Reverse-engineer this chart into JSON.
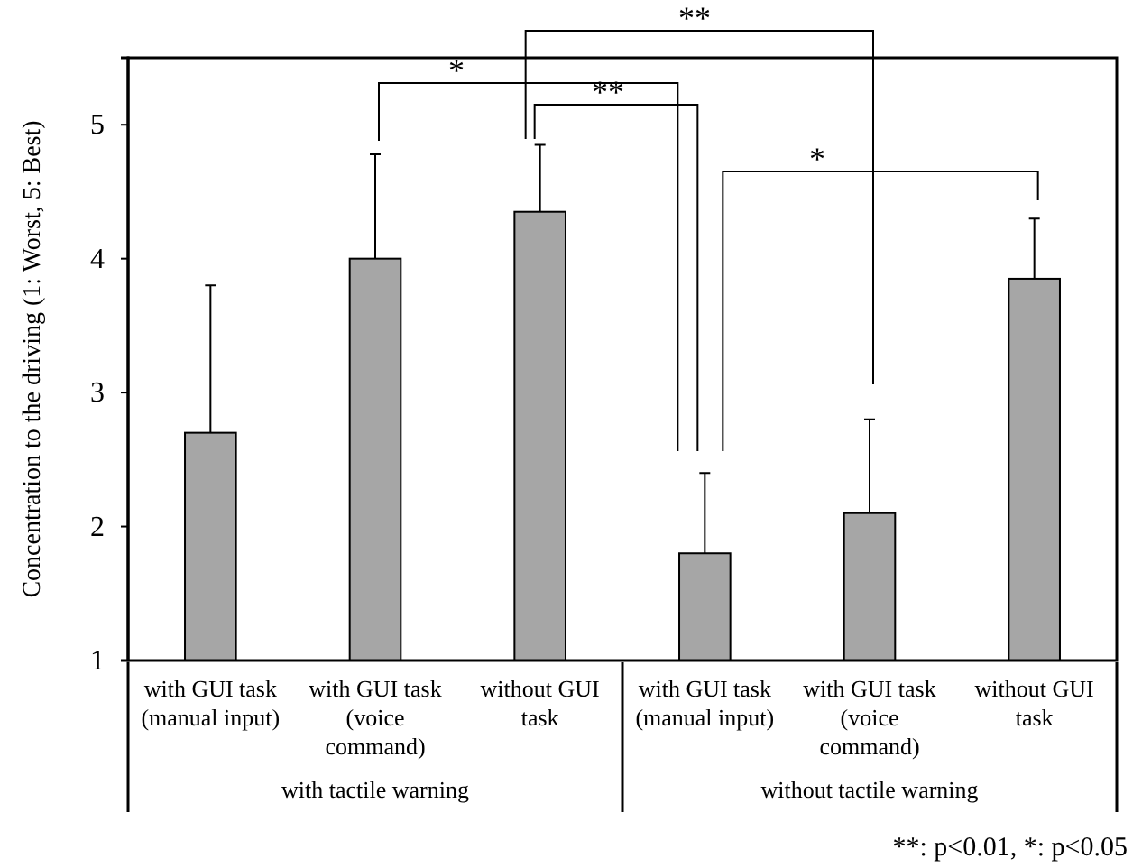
{
  "chart_data": {
    "type": "bar",
    "ylabel": "Concentration to the driving (1: Worst, 5: Best)",
    "categories": [
      "with GUI task (manual input)",
      "with GUI task (voice command)",
      "without GUI task",
      "with GUI task (manual input)",
      "with GUI task (voice command)",
      "without GUI task"
    ],
    "values": [
      2.7,
      4.0,
      4.35,
      1.8,
      2.1,
      3.85
    ],
    "errors": [
      [
        2.7,
        3.8
      ],
      [
        4.0,
        4.78
      ],
      [
        4.35,
        4.85
      ],
      [
        1.8,
        2.4
      ],
      [
        2.1,
        2.8
      ],
      [
        3.85,
        4.3
      ]
    ],
    "color": "#a6a6a6",
    "ylim": [
      1,
      5.5
    ],
    "yticks": [
      1,
      2,
      3,
      4,
      5
    ],
    "grid": false,
    "annotations": [
      "*",
      "**",
      "**",
      "*",
      "with tactile warning",
      "without tactile warning",
      "**: p<0.01, *: p<0.05"
    ]
  }
}
